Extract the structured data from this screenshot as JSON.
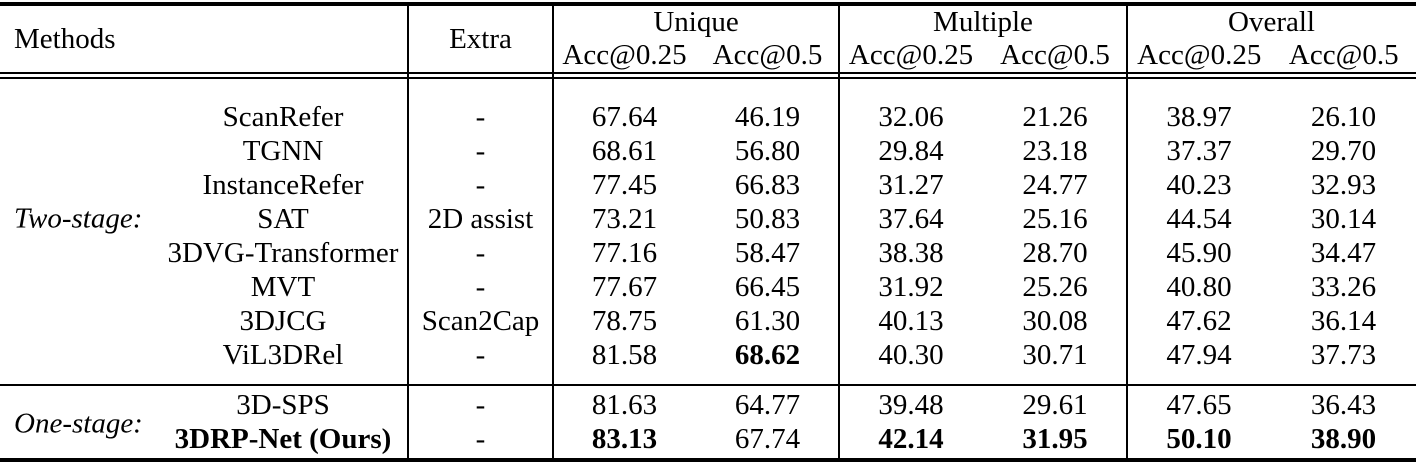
{
  "colors": {
    "background": "#ffffff",
    "text": "#000000",
    "rule": "#000000"
  },
  "table": {
    "header": {
      "methods": "Methods",
      "extra": "Extra",
      "groups": [
        {
          "label": "Unique",
          "sub": [
            "Acc@0.25",
            "Acc@0.5"
          ]
        },
        {
          "label": "Multiple",
          "sub": [
            "Acc@0.25",
            "Acc@0.5"
          ]
        },
        {
          "label": "Overall",
          "sub": [
            "Acc@0.25",
            "Acc@0.5"
          ]
        }
      ]
    },
    "sections": [
      {
        "stage": "Two-stage:",
        "rows": [
          {
            "method": "ScanRefer",
            "extra": "-",
            "values": [
              "67.64",
              "46.19",
              "32.06",
              "21.26",
              "38.97",
              "26.10"
            ],
            "bold_values": [],
            "method_bold": false
          },
          {
            "method": "TGNN",
            "extra": "-",
            "values": [
              "68.61",
              "56.80",
              "29.84",
              "23.18",
              "37.37",
              "29.70"
            ],
            "bold_values": [],
            "method_bold": false
          },
          {
            "method": "InstanceRefer",
            "extra": "-",
            "values": [
              "77.45",
              "66.83",
              "31.27",
              "24.77",
              "40.23",
              "32.93"
            ],
            "bold_values": [],
            "method_bold": false
          },
          {
            "method": "SAT",
            "extra": "2D assist",
            "values": [
              "73.21",
              "50.83",
              "37.64",
              "25.16",
              "44.54",
              "30.14"
            ],
            "bold_values": [],
            "method_bold": false
          },
          {
            "method": "3DVG-Transformer",
            "extra": "-",
            "values": [
              "77.16",
              "58.47",
              "38.38",
              "28.70",
              "45.90",
              "34.47"
            ],
            "bold_values": [],
            "method_bold": false
          },
          {
            "method": "MVT",
            "extra": "-",
            "values": [
              "77.67",
              "66.45",
              "31.92",
              "25.26",
              "40.80",
              "33.26"
            ],
            "bold_values": [],
            "method_bold": false
          },
          {
            "method": "3DJCG",
            "extra": "Scan2Cap",
            "values": [
              "78.75",
              "61.30",
              "40.13",
              "30.08",
              "47.62",
              "36.14"
            ],
            "bold_values": [],
            "method_bold": false
          },
          {
            "method": "ViL3DRel",
            "extra": "-",
            "values": [
              "81.58",
              "68.62",
              "40.30",
              "30.71",
              "47.94",
              "37.73"
            ],
            "bold_values": [
              1
            ],
            "method_bold": false
          }
        ]
      },
      {
        "stage": "One-stage:",
        "rows": [
          {
            "method": "3D-SPS",
            "extra": "-",
            "values": [
              "81.63",
              "64.77",
              "39.48",
              "29.61",
              "47.65",
              "36.43"
            ],
            "bold_values": [],
            "method_bold": false
          },
          {
            "method": "3DRP-Net (Ours)",
            "extra": "-",
            "values": [
              "83.13",
              "67.74",
              "42.14",
              "31.95",
              "50.10",
              "38.90"
            ],
            "bold_values": [
              0,
              2,
              3,
              4,
              5
            ],
            "method_bold": true
          }
        ]
      }
    ]
  }
}
